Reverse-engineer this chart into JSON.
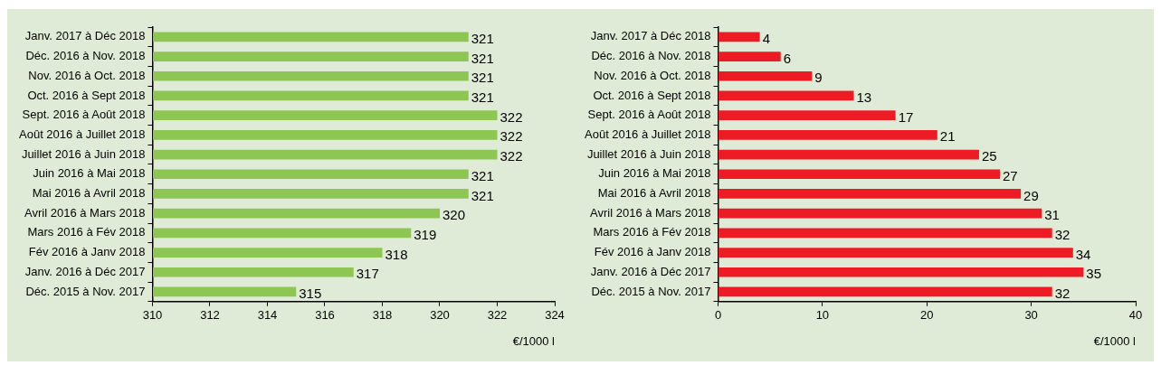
{
  "chart_data": [
    {
      "type": "bar",
      "orientation": "horizontal",
      "categories": [
        "Janv. 2017 à Déc 2018",
        "Déc. 2016 à Nov. 2018",
        "Nov. 2016 à Oct. 2018",
        "Oct. 2016 à Sept 2018",
        "Sept. 2016 à Août 2018",
        "Août 2016 à Juillet 2018",
        "Juillet 2016 à Juin 2018",
        "Juin 2016 à Mai 2018",
        "Mai 2016 à Avril 2018",
        "Avril 2016 à Mars 2018",
        "Mars 2016 à Fév 2018",
        "Fév 2016 à Janv 2018",
        "Janv. 2016 à Déc 2017",
        "Déc. 2015 à Nov. 2017"
      ],
      "values": [
        321,
        321,
        321,
        321,
        322,
        322,
        322,
        321,
        321,
        320,
        319,
        318,
        317,
        315
      ],
      "color": "#8dc653",
      "xlim": [
        310,
        324
      ],
      "xticks": [
        310,
        312,
        314,
        316,
        318,
        320,
        322,
        324
      ],
      "xlabel": "€/1000 l",
      "data_labels": true,
      "grid": false
    },
    {
      "type": "bar",
      "orientation": "horizontal",
      "categories": [
        "Janv. 2017 à Déc 2018",
        "Déc. 2016 à Nov. 2018",
        "Nov. 2016 à Oct. 2018",
        "Oct. 2016 à Sept 2018",
        "Sept. 2016 à Août 2018",
        "Août 2016 à Juillet 2018",
        "Juillet 2016 à Juin 2018",
        "Juin 2016 à Mai 2018",
        "Mai 2016 à Avril 2018",
        "Avril 2016 à Mars 2018",
        "Mars 2016 à Fév 2018",
        "Fév 2016 à Janv 2018",
        "Janv. 2016 à Déc 2017",
        "Déc. 2015 à Nov. 2017"
      ],
      "values": [
        4,
        6,
        9,
        13,
        17,
        21,
        25,
        27,
        29,
        31,
        32,
        34,
        35,
        32
      ],
      "color": "#ed1c24",
      "xlim": [
        0,
        40
      ],
      "xticks": [
        0,
        10,
        20,
        30,
        40
      ],
      "xlabel": "€/1000 l",
      "data_labels": true,
      "grid": false
    }
  ]
}
